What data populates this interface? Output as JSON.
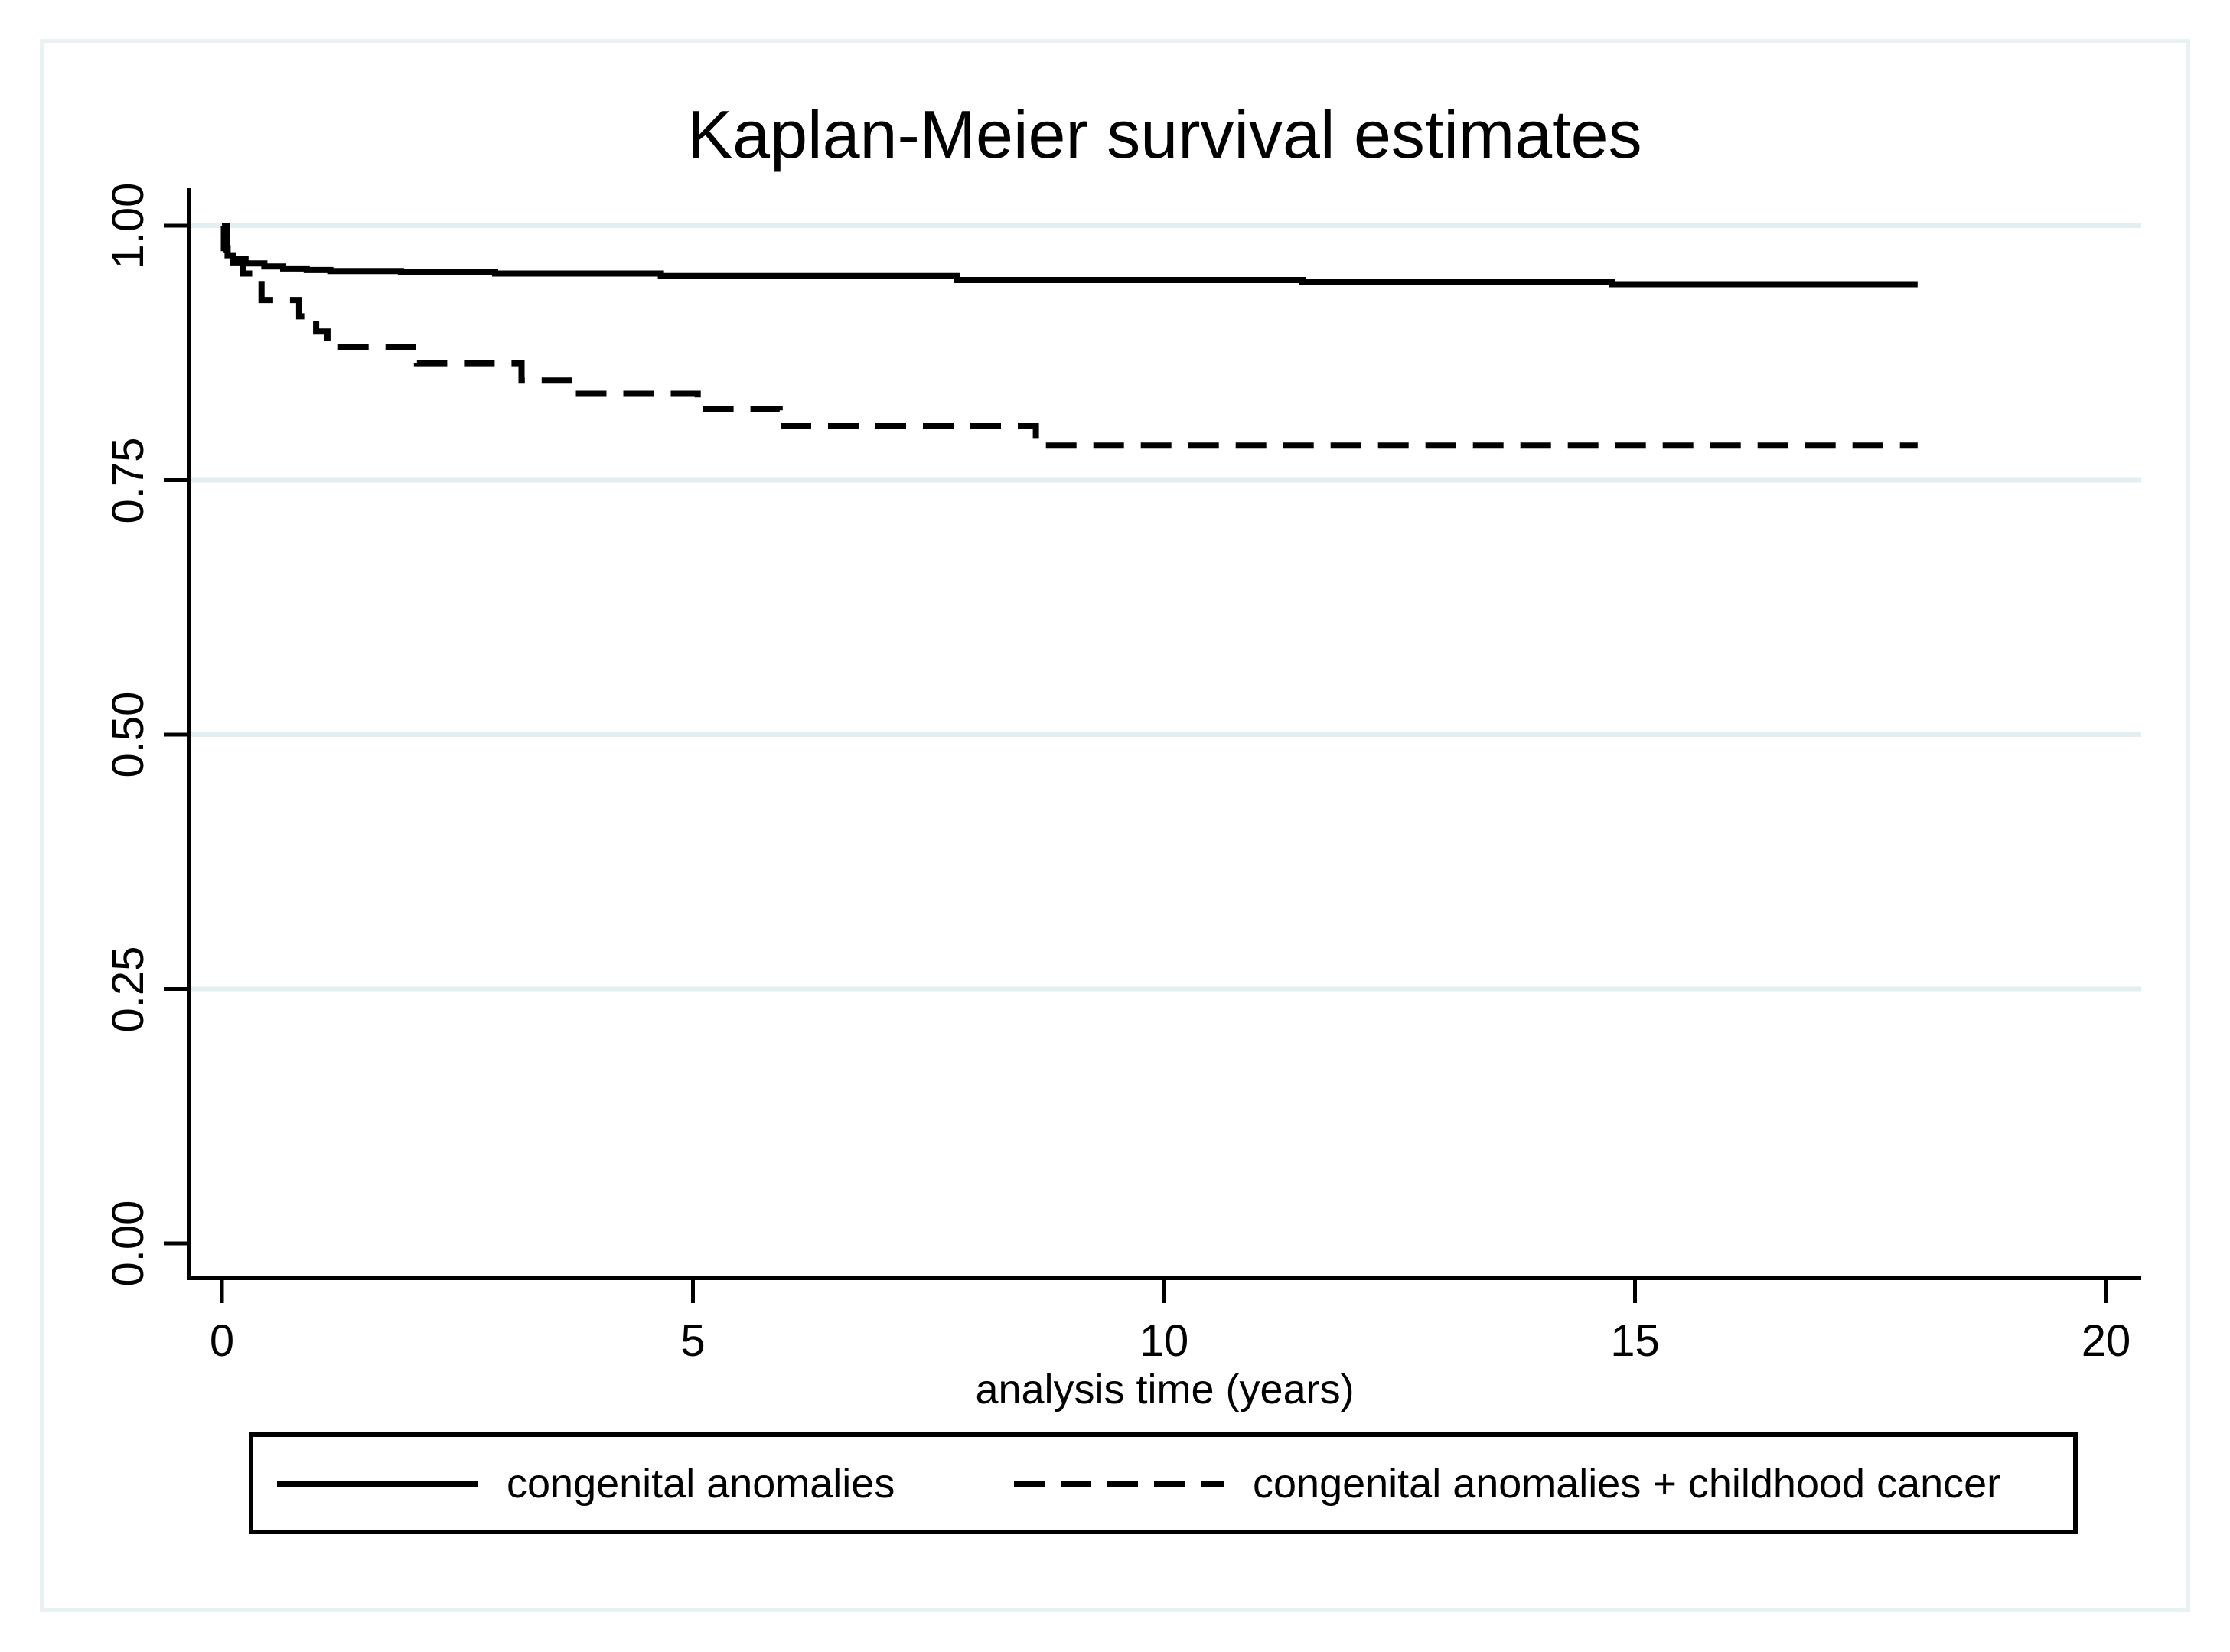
{
  "figure": {
    "title": "Kaplan-Meier survival estimates",
    "x_axis": {
      "label": "analysis time (years)",
      "tick_labels": [
        "0",
        "5",
        "10",
        "15",
        "20"
      ],
      "tick_values": [
        0,
        5,
        10,
        15,
        20
      ]
    },
    "y_axis": {
      "tick_labels": [
        "0.00",
        "0.25",
        "0.50",
        "0.75",
        "1.00"
      ],
      "tick_values": [
        0,
        0.25,
        0.5,
        0.75,
        1
      ],
      "gridline_values": [
        0.25,
        0.5,
        0.75,
        1
      ]
    },
    "legend": {
      "items": [
        {
          "label": "congenital anomalies",
          "line_style": "solid"
        },
        {
          "label": "congenital anomalies + childhood cancer",
          "line_style": "dashed"
        }
      ]
    },
    "colors": {
      "line": "#000000",
      "gridline": "#E3EEF0",
      "frame_border": "#E9F2F3",
      "background": "#FFFFFF",
      "text": "#000000"
    }
  },
  "chart_data": {
    "type": "line",
    "subtype": "kaplan_meier_step",
    "title": "Kaplan-Meier survival estimates",
    "xlabel": "analysis time (years)",
    "ylabel": "",
    "xlim": [
      0,
      20
    ],
    "ylim": [
      0,
      1
    ],
    "x_ticks": [
      0,
      5,
      10,
      15,
      20
    ],
    "y_ticks": [
      0,
      0.25,
      0.5,
      0.75,
      1
    ],
    "grid": "horizontal",
    "legend_position": "bottom",
    "series": [
      {
        "name": "congenital anomalies",
        "style": "solid",
        "color": "#000000",
        "steps_time_survival": [
          [
            0,
            1.0
          ],
          [
            0.02,
            0.978
          ],
          [
            0.06,
            0.971
          ],
          [
            0.12,
            0.967
          ],
          [
            0.25,
            0.963
          ],
          [
            0.45,
            0.96
          ],
          [
            0.65,
            0.958
          ],
          [
            0.9,
            0.9565
          ],
          [
            1.15,
            0.9555
          ],
          [
            1.9,
            0.9545
          ],
          [
            2.9,
            0.953
          ],
          [
            4.66,
            0.9505
          ],
          [
            7.8,
            0.9466
          ],
          [
            11.47,
            0.945
          ],
          [
            14.76,
            0.9425
          ],
          [
            18,
            0.9425
          ]
        ]
      },
      {
        "name": "congenital anomalies + childhood cancer",
        "style": "dashed",
        "color": "#000000",
        "steps_time_survival": [
          [
            0,
            1.0
          ],
          [
            0.05,
            0.976
          ],
          [
            0.12,
            0.964
          ],
          [
            0.22,
            0.953
          ],
          [
            0.42,
            0.927
          ],
          [
            0.82,
            0.911
          ],
          [
            1.0,
            0.896
          ],
          [
            1.12,
            0.881
          ],
          [
            2.07,
            0.865
          ],
          [
            3.18,
            0.848
          ],
          [
            3.72,
            0.835
          ],
          [
            5.05,
            0.82
          ],
          [
            5.92,
            0.803
          ],
          [
            8.64,
            0.784
          ],
          [
            18,
            0.784
          ]
        ]
      }
    ]
  }
}
